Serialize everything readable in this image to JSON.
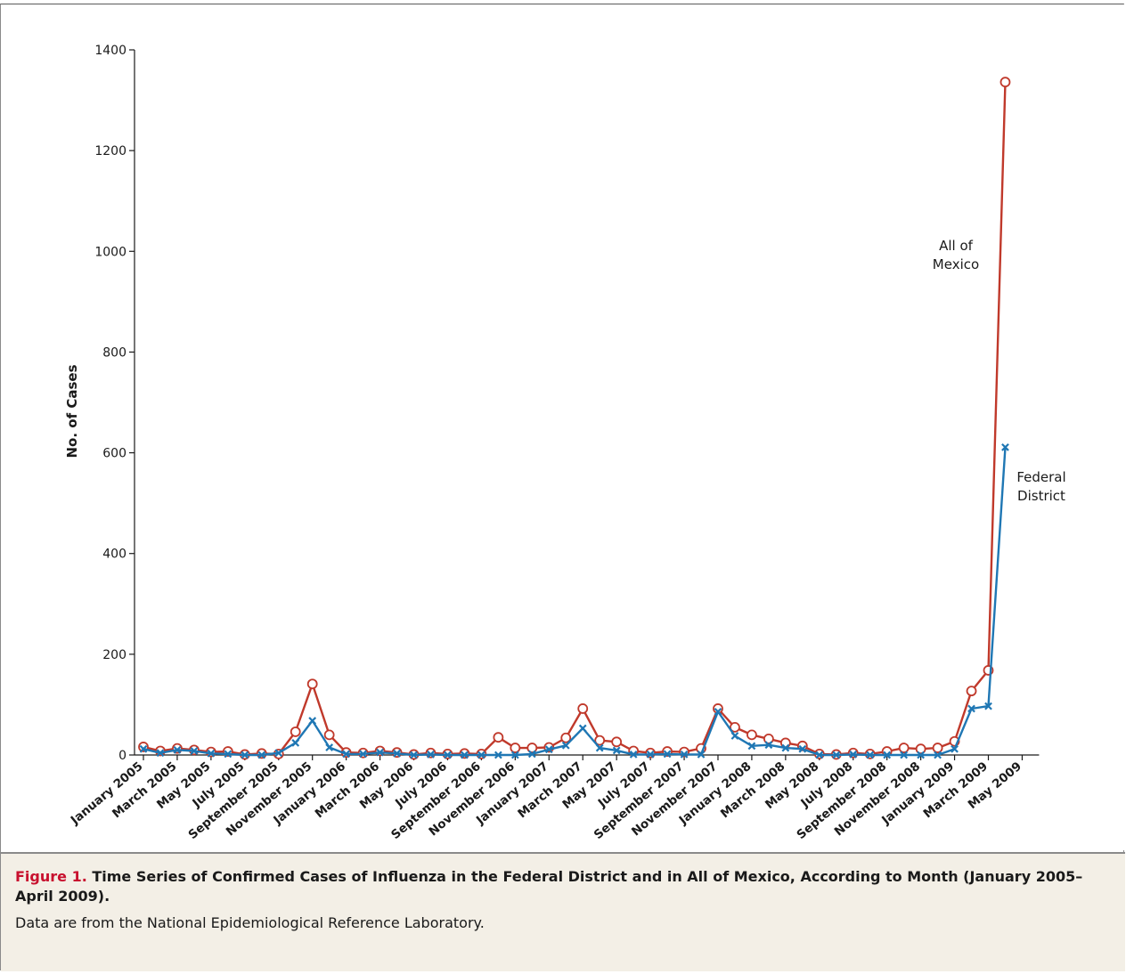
{
  "chart_data": {
    "type": "line",
    "xlabel": "",
    "ylabel": "No. of Cases",
    "ylim": [
      0,
      1400
    ],
    "y_ticks": [
      0,
      200,
      400,
      600,
      800,
      1000,
      1200,
      1400
    ],
    "grid": false,
    "x": [
      "January 2005",
      "February 2005",
      "March 2005",
      "April 2005",
      "May 2005",
      "June 2005",
      "July 2005",
      "August 2005",
      "September 2005",
      "October 2005",
      "November 2005",
      "December 2005",
      "January 2006",
      "February 2006",
      "March 2006",
      "April 2006",
      "May 2006",
      "June 2006",
      "July 2006",
      "August 2006",
      "September 2006",
      "October 2006",
      "November 2006",
      "December 2006",
      "January 2007",
      "February 2007",
      "March 2007",
      "April 2007",
      "May 2007",
      "June 2007",
      "July 2007",
      "August 2007",
      "September 2007",
      "October 2007",
      "November 2007",
      "December 2007",
      "January 2008",
      "February 2008",
      "March 2008",
      "April 2008",
      "May 2008",
      "June 2008",
      "July 2008",
      "August 2008",
      "September 2008",
      "October 2008",
      "November 2008",
      "December 2008",
      "January 2009",
      "February 2009",
      "March 2009",
      "April 2009"
    ],
    "x_tick_labels": [
      "January 2005",
      "March 2005",
      "May 2005",
      "July 2005",
      "September 2005",
      "November 2005",
      "January 2006",
      "March 2006",
      "May 2006",
      "July 2006",
      "September 2006",
      "November 2006",
      "January 2007",
      "March 2007",
      "May 2007",
      "July 2007",
      "September 2007",
      "November 2007",
      "January 2008",
      "March 2008",
      "May 2008",
      "July 2008",
      "September 2008",
      "November 2008",
      "January 2009",
      "March 2009",
      "May 2009"
    ],
    "series": [
      {
        "name": "All of Mexico",
        "color": "#c0392b",
        "marker": "open-circle",
        "values": [
          16,
          8,
          13,
          10,
          6,
          7,
          1,
          3,
          2,
          46,
          141,
          40,
          5,
          4,
          8,
          5,
          1,
          4,
          2,
          3,
          2,
          35,
          14,
          14,
          15,
          34,
          92,
          29,
          26,
          8,
          4,
          7,
          6,
          13,
          92,
          55,
          40,
          32,
          24,
          18,
          2,
          1,
          4,
          2,
          7,
          14,
          12,
          14,
          27,
          127,
          168,
          1336
        ]
      },
      {
        "name": "Federal District",
        "color": "#1f77b4",
        "marker": "x",
        "values": [
          12,
          4,
          10,
          8,
          3,
          2,
          0,
          0,
          4,
          24,
          68,
          15,
          2,
          2,
          5,
          3,
          0,
          1,
          0,
          0,
          0,
          0,
          0,
          2,
          11,
          19,
          53,
          14,
          9,
          1,
          1,
          2,
          1,
          1,
          86,
          38,
          18,
          20,
          14,
          12,
          0,
          0,
          1,
          0,
          0,
          0,
          0,
          0,
          12,
          92,
          97,
          611
        ]
      }
    ],
    "annotations": [
      {
        "series": "All of Mexico",
        "lines": [
          "All of",
          "Mexico"
        ]
      },
      {
        "series": "Federal District",
        "lines": [
          "Federal",
          "District"
        ]
      }
    ]
  },
  "caption": {
    "label": "Figure 1.",
    "title": "Time Series of Confirmed Cases of Influenza in the Federal District and in All of Mexico, According to Month (January 2005–April 2009).",
    "note": "Data are from the National Epidemiological Reference Laboratory."
  }
}
